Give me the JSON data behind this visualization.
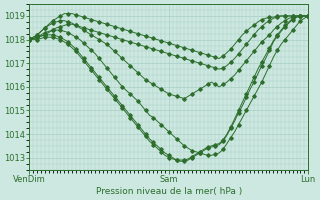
{
  "background_color": "#cce8e0",
  "plot_bg_color": "#cce8e0",
  "line_color": "#2d6e2d",
  "grid_color": "#a8cfc4",
  "xlabel": "Pression niveau de la mer( hPa )",
  "ylim": [
    1012.5,
    1019.5
  ],
  "yticks": [
    1013,
    1014,
    1015,
    1016,
    1017,
    1018,
    1019
  ],
  "total_points": 73,
  "xtick_positions": [
    0,
    36,
    72
  ],
  "xtick_labels": [
    "VenDim",
    "Sam",
    "Lun"
  ],
  "series": [
    [
      1018.0,
      1018.05,
      1018.1,
      1018.15,
      1018.2,
      1018.3,
      1018.4,
      1018.5,
      1018.55,
      1018.6,
      1018.65,
      1018.65,
      1018.6,
      1018.55,
      1018.5,
      1018.45,
      1018.4,
      1018.35,
      1018.3,
      1018.25,
      1018.2,
      1018.15,
      1018.1,
      1018.05,
      1018.0,
      1017.95,
      1017.9,
      1017.85,
      1017.8,
      1017.75,
      1017.7,
      1017.65,
      1017.6,
      1017.55,
      1017.5,
      1017.45,
      1017.4,
      1017.35,
      1017.3,
      1017.25,
      1017.2,
      1017.15,
      1017.1,
      1017.05,
      1017.0,
      1016.95,
      1016.9,
      1016.85,
      1016.8,
      1016.75,
      1016.8,
      1016.9,
      1017.05,
      1017.2,
      1017.4,
      1017.6,
      1017.8,
      1018.0,
      1018.2,
      1018.4,
      1018.55,
      1018.7,
      1018.8,
      1018.9,
      1018.95,
      1019.0,
      1019.0,
      1019.0,
      1019.0,
      1019.0,
      1019.0,
      1019.0,
      1019.0
    ],
    [
      1018.0,
      1018.1,
      1018.2,
      1018.35,
      1018.5,
      1018.65,
      1018.8,
      1018.9,
      1019.0,
      1019.1,
      1019.1,
      1019.1,
      1019.05,
      1019.0,
      1018.95,
      1018.9,
      1018.85,
      1018.8,
      1018.75,
      1018.7,
      1018.65,
      1018.6,
      1018.55,
      1018.5,
      1018.45,
      1018.4,
      1018.35,
      1018.3,
      1018.25,
      1018.2,
      1018.15,
      1018.1,
      1018.05,
      1018.0,
      1017.95,
      1017.9,
      1017.85,
      1017.8,
      1017.75,
      1017.7,
      1017.65,
      1017.6,
      1017.55,
      1017.5,
      1017.45,
      1017.4,
      1017.35,
      1017.3,
      1017.25,
      1017.2,
      1017.3,
      1017.45,
      1017.6,
      1017.8,
      1018.0,
      1018.2,
      1018.35,
      1018.5,
      1018.6,
      1018.75,
      1018.85,
      1018.9,
      1018.95,
      1018.95,
      1019.0,
      1019.0,
      1019.0,
      1019.0,
      1019.0,
      1019.0,
      1019.0,
      1019.0,
      1019.0
    ],
    [
      1018.05,
      1018.1,
      1018.2,
      1018.35,
      1018.5,
      1018.6,
      1018.7,
      1018.75,
      1018.8,
      1018.8,
      1018.75,
      1018.7,
      1018.6,
      1018.5,
      1018.4,
      1018.3,
      1018.2,
      1018.1,
      1018.0,
      1017.9,
      1017.8,
      1017.65,
      1017.5,
      1017.35,
      1017.2,
      1017.05,
      1016.9,
      1016.75,
      1016.6,
      1016.45,
      1016.3,
      1016.2,
      1016.1,
      1016.0,
      1015.9,
      1015.8,
      1015.7,
      1015.65,
      1015.6,
      1015.55,
      1015.5,
      1015.6,
      1015.7,
      1015.8,
      1015.9,
      1016.0,
      1016.1,
      1016.2,
      1016.1,
      1016.0,
      1016.1,
      1016.2,
      1016.35,
      1016.5,
      1016.7,
      1016.9,
      1017.1,
      1017.3,
      1017.5,
      1017.7,
      1017.9,
      1018.05,
      1018.2,
      1018.4,
      1018.55,
      1018.7,
      1018.8,
      1018.9,
      1018.95,
      1019.0,
      1019.0,
      1019.0,
      1019.0
    ],
    [
      1018.0,
      1018.05,
      1018.1,
      1018.2,
      1018.3,
      1018.35,
      1018.4,
      1018.4,
      1018.4,
      1018.35,
      1018.3,
      1018.2,
      1018.1,
      1018.0,
      1017.85,
      1017.7,
      1017.55,
      1017.4,
      1017.2,
      1017.0,
      1016.8,
      1016.6,
      1016.4,
      1016.2,
      1016.0,
      1015.85,
      1015.7,
      1015.55,
      1015.4,
      1015.2,
      1015.0,
      1014.8,
      1014.7,
      1014.55,
      1014.4,
      1014.25,
      1014.1,
      1013.95,
      1013.8,
      1013.65,
      1013.5,
      1013.4,
      1013.3,
      1013.25,
      1013.2,
      1013.15,
      1013.1,
      1013.1,
      1013.15,
      1013.2,
      1013.35,
      1013.6,
      1013.85,
      1014.1,
      1014.4,
      1014.7,
      1015.0,
      1015.3,
      1015.6,
      1015.9,
      1016.2,
      1016.55,
      1016.9,
      1017.25,
      1017.55,
      1017.8,
      1018.0,
      1018.2,
      1018.4,
      1018.6,
      1018.8,
      1018.9,
      1019.0
    ],
    [
      1018.0,
      1018.05,
      1018.1,
      1018.15,
      1018.2,
      1018.2,
      1018.2,
      1018.15,
      1018.1,
      1018.0,
      1017.9,
      1017.75,
      1017.6,
      1017.4,
      1017.2,
      1017.0,
      1016.8,
      1016.6,
      1016.4,
      1016.2,
      1016.0,
      1015.8,
      1015.6,
      1015.4,
      1015.2,
      1015.0,
      1014.8,
      1014.6,
      1014.4,
      1014.2,
      1014.0,
      1013.8,
      1013.65,
      1013.5,
      1013.35,
      1013.2,
      1013.1,
      1013.0,
      1012.9,
      1012.85,
      1012.85,
      1012.9,
      1013.0,
      1013.1,
      1013.2,
      1013.3,
      1013.4,
      1013.45,
      1013.5,
      1013.55,
      1013.7,
      1013.95,
      1014.25,
      1014.55,
      1014.9,
      1015.2,
      1015.55,
      1015.9,
      1016.2,
      1016.55,
      1016.9,
      1017.2,
      1017.55,
      1017.9,
      1018.15,
      1018.35,
      1018.55,
      1018.7,
      1018.85,
      1018.95,
      1019.0,
      1019.0,
      1019.0
    ],
    [
      1018.0,
      1018.0,
      1018.0,
      1018.05,
      1018.1,
      1018.1,
      1018.1,
      1018.05,
      1018.0,
      1017.9,
      1017.8,
      1017.65,
      1017.5,
      1017.3,
      1017.1,
      1016.9,
      1016.7,
      1016.5,
      1016.3,
      1016.1,
      1015.9,
      1015.7,
      1015.5,
      1015.3,
      1015.1,
      1014.9,
      1014.7,
      1014.5,
      1014.3,
      1014.1,
      1013.9,
      1013.7,
      1013.55,
      1013.4,
      1013.25,
      1013.1,
      1013.0,
      1012.95,
      1012.9,
      1012.9,
      1012.9,
      1012.95,
      1013.05,
      1013.15,
      1013.25,
      1013.35,
      1013.45,
      1013.5,
      1013.55,
      1013.6,
      1013.75,
      1014.0,
      1014.3,
      1014.65,
      1015.0,
      1015.35,
      1015.7,
      1016.05,
      1016.4,
      1016.75,
      1017.05,
      1017.35,
      1017.65,
      1017.95,
      1018.2,
      1018.4,
      1018.6,
      1018.75,
      1018.9,
      1018.95,
      1019.0,
      1019.0,
      1019.0
    ]
  ]
}
